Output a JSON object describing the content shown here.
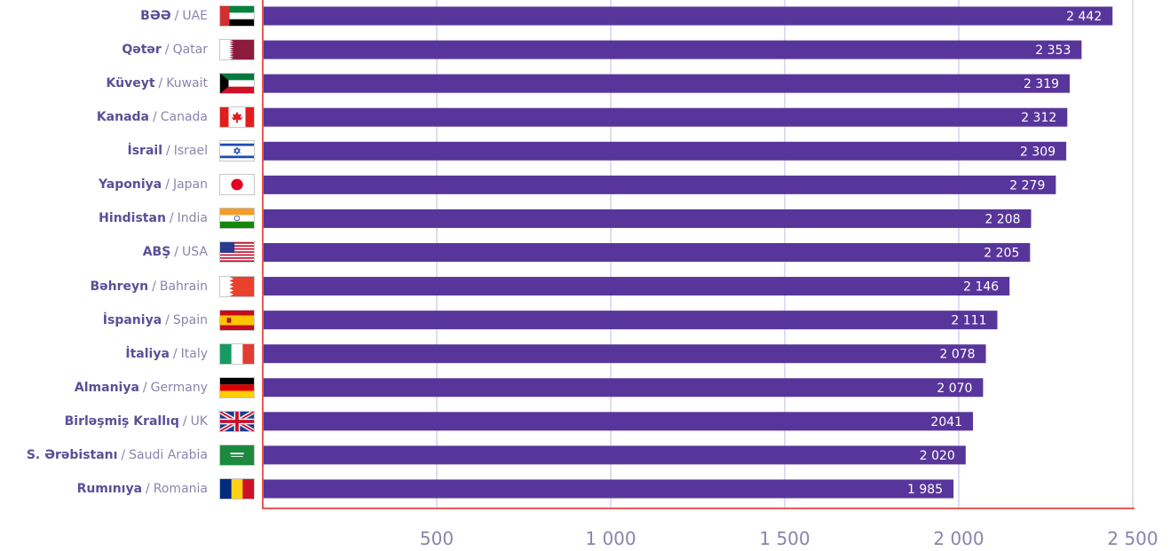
{
  "chart_data": {
    "type": "bar",
    "orientation": "horizontal",
    "categories": [
      {
        "az": "BƏƏ",
        "en": "UAE",
        "flag": "flag-uae"
      },
      {
        "az": "Qətər",
        "en": "Qatar",
        "flag": "flag-qatar"
      },
      {
        "az": "Küveyt",
        "en": "Kuwait",
        "flag": "flag-kuwait"
      },
      {
        "az": "Kanada",
        "en": "Canada",
        "flag": "flag-canada"
      },
      {
        "az": "İsrail",
        "en": "Israel",
        "flag": "flag-israel"
      },
      {
        "az": "Yaponiya",
        "en": "Japan",
        "flag": "flag-japan"
      },
      {
        "az": "Hindistan",
        "en": "India",
        "flag": "flag-india"
      },
      {
        "az": "ABŞ",
        "en": "USA",
        "flag": "flag-usa"
      },
      {
        "az": "Bəhreyn",
        "en": "Bahrain",
        "flag": "flag-bahrain"
      },
      {
        "az": "İspaniya",
        "en": "Spain",
        "flag": "flag-spain"
      },
      {
        "az": "İtaliya",
        "en": "Italy",
        "flag": "flag-italy"
      },
      {
        "az": "Almaniya",
        "en": "Germany",
        "flag": "flag-germany"
      },
      {
        "az": "Birləşmiş Krallıq",
        "en": "UK",
        "flag": "flag-uk"
      },
      {
        "az": "S. Ərəbistanı",
        "en": "Saudi Arabia",
        "flag": "flag-saudi-arabia"
      },
      {
        "az": "Rumınıya",
        "en": "Romania",
        "flag": "flag-romania"
      }
    ],
    "values": [
      2442,
      2353,
      2319,
      2312,
      2309,
      2279,
      2208,
      2205,
      2146,
      2111,
      2078,
      2070,
      2041,
      2020,
      1985
    ],
    "value_labels": [
      "2 442",
      "2 353",
      "2 319",
      "2 312",
      "2 309",
      "2 279",
      "2 208",
      "2 205",
      "2 146",
      "2 111",
      "2 078",
      "2 070",
      "2041",
      "2 020",
      "1 985"
    ],
    "xticks": [
      500,
      1000,
      1500,
      2000,
      2500
    ],
    "xtick_labels": [
      "500",
      "1 000",
      "1 500",
      "2 000",
      "2 500"
    ],
    "xlim": [
      0,
      2500
    ],
    "grid": true,
    "title": "",
    "xlabel": "",
    "ylabel": "",
    "colors": {
      "bar": "#58359a",
      "axis": "#e45a5a",
      "grid": "#c9c7e6",
      "tick_label": "#8a84ad"
    }
  }
}
